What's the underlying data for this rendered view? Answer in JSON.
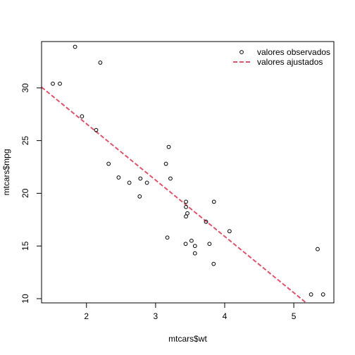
{
  "chart_data": {
    "type": "scatter",
    "title": "",
    "xlabel": "mtcars$wt",
    "ylabel": "mtcars$mpg",
    "xlim": [
      1.35,
      5.58
    ],
    "ylim": [
      9.6,
      34.4
    ],
    "x_ticks": [
      2,
      3,
      4,
      5
    ],
    "y_ticks": [
      10,
      15,
      20,
      25,
      30
    ],
    "grid": false,
    "legend_position": "top-right",
    "series": [
      {
        "name": "valores observados",
        "kind": "points",
        "marker": "open-circle",
        "color": "#000000",
        "points": [
          [
            2.62,
            21.0
          ],
          [
            2.875,
            21.0
          ],
          [
            2.32,
            22.8
          ],
          [
            3.215,
            21.4
          ],
          [
            3.44,
            18.7
          ],
          [
            3.46,
            18.1
          ],
          [
            3.57,
            14.3
          ],
          [
            3.19,
            24.4
          ],
          [
            3.15,
            22.8
          ],
          [
            3.44,
            19.2
          ],
          [
            3.44,
            17.8
          ],
          [
            4.07,
            16.4
          ],
          [
            3.73,
            17.3
          ],
          [
            3.78,
            15.2
          ],
          [
            5.25,
            10.4
          ],
          [
            5.424,
            10.4
          ],
          [
            5.345,
            14.7
          ],
          [
            2.2,
            32.4
          ],
          [
            1.615,
            30.4
          ],
          [
            1.835,
            33.9
          ],
          [
            2.465,
            21.5
          ],
          [
            3.52,
            15.5
          ],
          [
            3.435,
            15.2
          ],
          [
            3.84,
            13.3
          ],
          [
            3.845,
            19.2
          ],
          [
            1.935,
            27.3
          ],
          [
            2.14,
            26.0
          ],
          [
            1.513,
            30.4
          ],
          [
            3.17,
            15.8
          ],
          [
            2.77,
            19.7
          ],
          [
            3.57,
            15.0
          ],
          [
            2.78,
            21.4
          ]
        ]
      },
      {
        "name": "valores ajustados",
        "kind": "line",
        "style": "dashed",
        "color": "#DF536B",
        "intercept": 37.285,
        "slope": -5.344
      }
    ]
  }
}
